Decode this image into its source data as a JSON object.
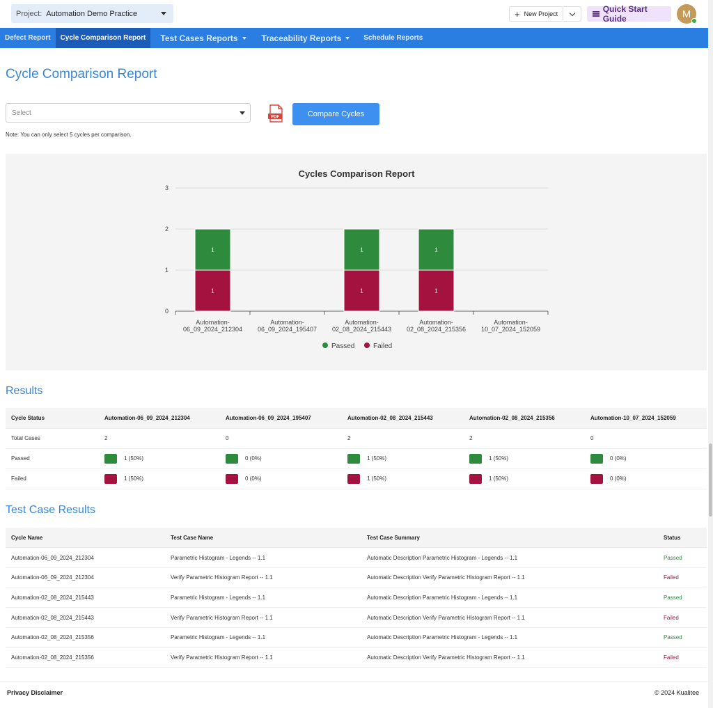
{
  "header": {
    "project_label": "Project:",
    "project_value": "Automation Demo Practice",
    "new_project": "New Project",
    "quick_start": "Quick Start Guide",
    "avatar_initial": "M"
  },
  "nav": {
    "items": [
      {
        "label": "Defect Report"
      },
      {
        "label": "Cycle Comparison Report"
      },
      {
        "label": "Test Cases Reports"
      },
      {
        "label": "Traceability Reports"
      },
      {
        "label": "Schedule Reports"
      }
    ]
  },
  "page": {
    "title": "Cycle Comparison Report",
    "select_placeholder": "Select",
    "compare_button": "Compare Cycles",
    "note": "Note: You can only select 5 cycles per comparison.",
    "pdf_label": "PDF"
  },
  "chart_data": {
    "type": "bar",
    "stacked": true,
    "title": "Cycles Comparison Report",
    "categories": [
      [
        "Automation-",
        "06_09_2024_212304"
      ],
      [
        "Automation-",
        "06_09_2024_195407"
      ],
      [
        "Automation-",
        "02_08_2024_215443"
      ],
      [
        "Automation-",
        "02_08_2024_215356"
      ],
      [
        "Automation-",
        "10_07_2024_152059"
      ]
    ],
    "series": [
      {
        "name": "Failed",
        "color": "#a4123f",
        "values": [
          1,
          0,
          1,
          1,
          0
        ]
      },
      {
        "name": "Passed",
        "color": "#2e8b3e",
        "values": [
          1,
          0,
          1,
          1,
          0
        ]
      }
    ],
    "legend_order": [
      "Passed",
      "Failed"
    ],
    "ylim": [
      0,
      3
    ],
    "yticks": [
      0,
      1,
      2,
      3
    ],
    "grid": true,
    "legend": "bottom-center"
  },
  "results": {
    "title": "Results",
    "header_first": "Cycle Status",
    "cycles": [
      "Automation-06_09_2024_212304",
      "Automation-06_09_2024_195407",
      "Automation-02_08_2024_215443",
      "Automation-02_08_2024_215356",
      "Automation-10_07_2024_152059"
    ],
    "rows": {
      "total_label": "Total Cases",
      "total": [
        "2",
        "0",
        "2",
        "2",
        "0"
      ],
      "passed_label": "Passed",
      "passed": [
        "1 (50%)",
        "0 (0%)",
        "1 (50%)",
        "1 (50%)",
        "0 (0%)"
      ],
      "failed_label": "Failed",
      "failed": [
        "1 (50%)",
        "0 (0%)",
        "1 (50%)",
        "1 (50%)",
        "0 (0%)"
      ]
    }
  },
  "test_cases": {
    "title": "Test Case Results",
    "columns": [
      "Cycle Name",
      "Test Case Name",
      "Test Case Summary",
      "Status"
    ],
    "rows": [
      [
        "Automation-06_09_2024_212304",
        "Parametric Histogram - Legends -- 1.1",
        "Automatic Description Parametric Histogram - Legends -- 1.1",
        "Passed"
      ],
      [
        "Automation-06_09_2024_212304",
        "Verify Parametric Histogram Report -- 1.1",
        "Automatic Description Verify Parametric Histogram Report -- 1.1",
        "Failed"
      ],
      [
        "Automation-02_08_2024_215443",
        "Parametric Histogram - Legends -- 1.1",
        "Automatic Description Parametric Histogram - Legends -- 1.1",
        "Passed"
      ],
      [
        "Automation-02_08_2024_215443",
        "Verify Parametric Histogram Report -- 1.1",
        "Automatic Description Verify Parametric Histogram Report -- 1.1",
        "Failed"
      ],
      [
        "Automation-02_08_2024_215356",
        "Parametric Histogram - Legends -- 1.1",
        "Automatic Description Parametric Histogram - Legends -- 1.1",
        "Passed"
      ],
      [
        "Automation-02_08_2024_215356",
        "Verify Parametric Histogram Report -- 1.1",
        "Automatic Description Verify Parametric Histogram Report -- 1.1",
        "Failed"
      ]
    ]
  },
  "footer": {
    "privacy": "Privacy Disclaimer",
    "copyright": "© 2024 Kualitee"
  }
}
